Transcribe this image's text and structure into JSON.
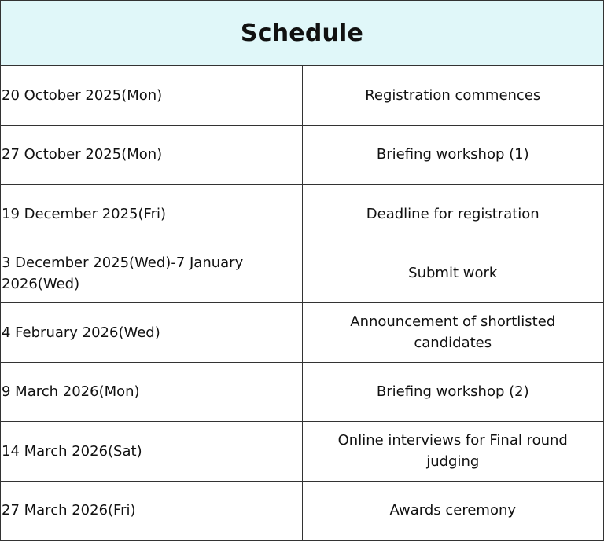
{
  "title": "Schedule",
  "header_bg": "#e0f7f9",
  "rows": [
    {
      "date": "20 October 2025(Mon)",
      "event": "Registration commences"
    },
    {
      "date": "27 October 2025(Mon)",
      "event": "Briefing workshop (1)"
    },
    {
      "date": "19 December 2025(Fri)",
      "event": "Deadline for registration"
    },
    {
      "date": "3 December 2025(Wed)-7 January 2026(Wed)",
      "event": "Submit work"
    },
    {
      "date": "4 February 2026(Wed)",
      "event": "Announcement of shortlisted candidates"
    },
    {
      "date": "9 March 2026(Mon)",
      "event": "Briefing workshop (2)"
    },
    {
      "date": "14 March 2026(Sat)",
      "event": "Online interviews for Final round judging"
    },
    {
      "date": "27 March 2026(Fri)",
      "event": "Awards ceremony"
    }
  ]
}
